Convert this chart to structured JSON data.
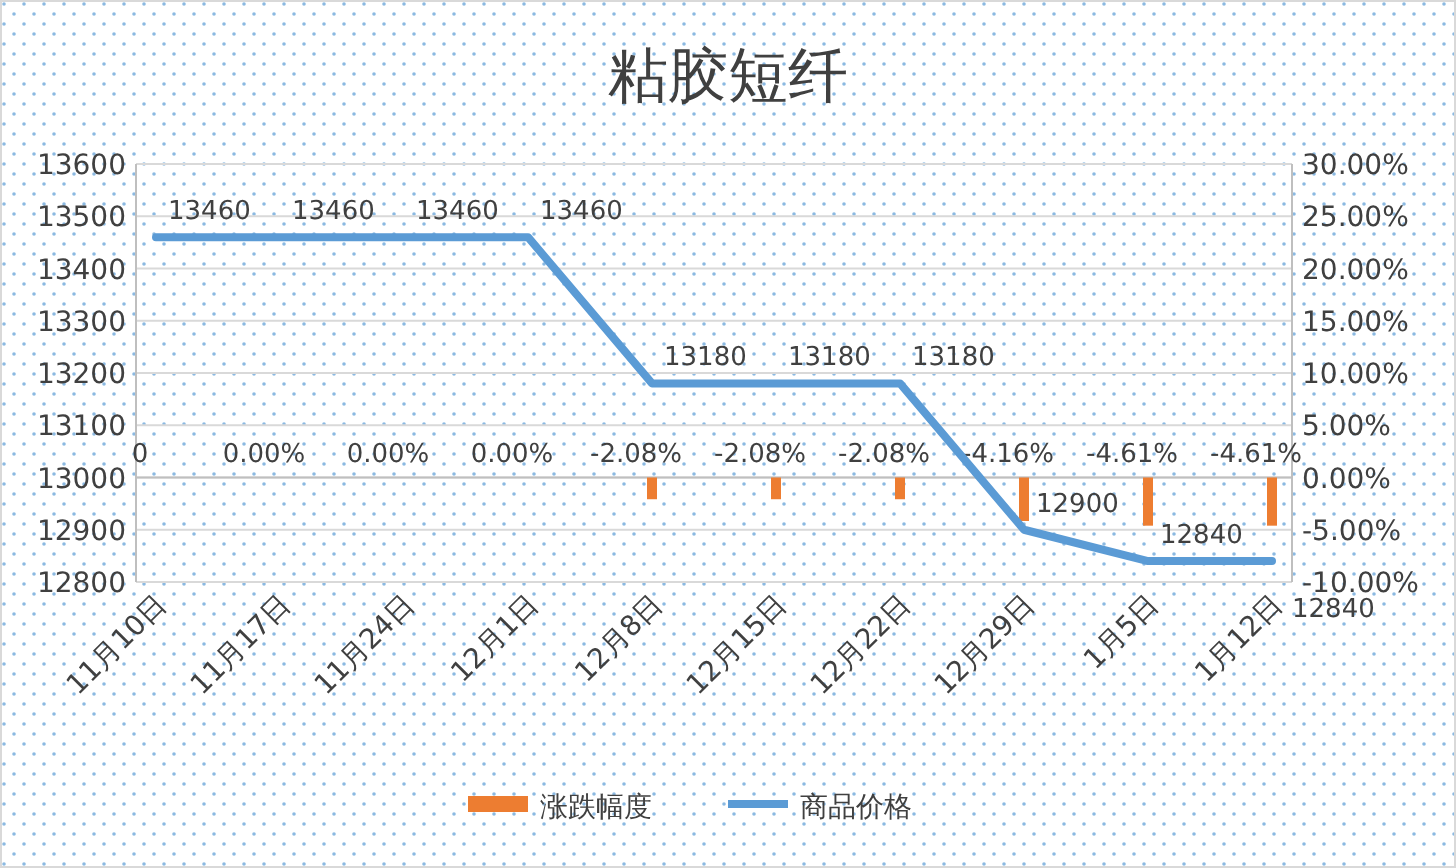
{
  "chart_data": {
    "type": "bar",
    "title": "粘胶短纤",
    "categories": [
      "11月10日",
      "11月17日",
      "11月24日",
      "12月1日",
      "12月8日",
      "12月15日",
      "12月22日",
      "12月29日",
      "1月5日",
      "1月12日"
    ],
    "series": [
      {
        "name": "涨跌幅度",
        "axis": "y2",
        "color": "#ed7d31",
        "values": [
          0,
          0,
          0,
          0,
          -2.08,
          -2.08,
          -2.08,
          -4.16,
          -4.61,
          -4.61
        ],
        "value_labels": [
          "0",
          "0.00%",
          "0.00%",
          "0.00%",
          "-2.08%",
          "-2.08%",
          "-2.08%",
          "-4.16%",
          "-4.61%",
          "-4.61%"
        ]
      },
      {
        "name": "商品价格",
        "type": "line",
        "color": "#5b9bd5",
        "values": [
          13460,
          13460,
          13460,
          13460,
          13180,
          13180,
          13180,
          12900,
          12840,
          12840
        ],
        "value_labels": [
          "13460",
          "13460",
          "13460",
          "13460",
          "13180",
          "13180",
          "13180",
          "12900",
          "12840",
          "12840"
        ]
      }
    ],
    "ylim": [
      12800,
      13600
    ],
    "yticks": [
      12800,
      12900,
      13000,
      13100,
      13200,
      13300,
      13400,
      13500,
      13600
    ],
    "y2lim": [
      -10,
      30
    ],
    "y2ticks": [
      {
        "value": -10,
        "label": "-10.00%"
      },
      {
        "value": -5,
        "label": "-5.00%"
      },
      {
        "value": 0,
        "label": "0.00%"
      },
      {
        "value": 5,
        "label": "5.00%"
      },
      {
        "value": 10,
        "label": "10.00%"
      },
      {
        "value": 15,
        "label": "15.00%"
      },
      {
        "value": 20,
        "label": "20.00%"
      },
      {
        "value": 25,
        "label": "25.00%"
      },
      {
        "value": 30,
        "label": "30.00%"
      }
    ],
    "grid": "y",
    "legend": "bottom",
    "marker": "none",
    "line_style": "solid"
  }
}
